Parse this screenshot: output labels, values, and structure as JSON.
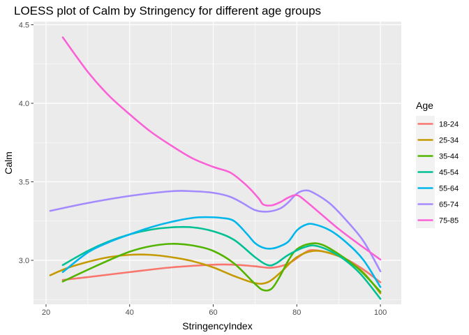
{
  "chart_data": {
    "type": "line",
    "title": "LOESS plot of Calm by Stringency for different age groups",
    "xlabel": "StringencyIndex",
    "ylabel": "Calm",
    "xlim": [
      17,
      105
    ],
    "ylim": [
      2.72,
      4.52
    ],
    "x_ticks": [
      20,
      40,
      60,
      80,
      100
    ],
    "x_tick_labels": [
      "20",
      "40",
      "60",
      "80",
      "100"
    ],
    "y_ticks": [
      3.0,
      3.5,
      4.0,
      4.5
    ],
    "y_tick_labels": [
      "3.0",
      "3.5",
      "4.0",
      "4.5"
    ],
    "grid": true,
    "panel_background": "#EBEBEB",
    "legend": {
      "title": "Age",
      "placement": "right"
    },
    "series": [
      {
        "name": "18-24",
        "color": "#F8766D",
        "x": [
          24,
          30,
          40,
          50,
          60,
          65,
          70,
          74,
          78,
          82,
          84,
          88,
          92,
          96,
          100
        ],
        "y": [
          2.875,
          2.893,
          2.925,
          2.955,
          2.972,
          2.972,
          2.962,
          2.953,
          2.98,
          3.05,
          3.065,
          3.045,
          3.005,
          2.94,
          2.86
        ]
      },
      {
        "name": "25-34",
        "color": "#C49A00",
        "x": [
          21,
          25,
          30,
          35,
          40,
          45,
          50,
          55,
          60,
          65,
          70,
          73,
          76,
          80,
          84,
          88,
          92,
          96,
          100
        ],
        "y": [
          2.905,
          2.95,
          2.99,
          3.02,
          3.035,
          3.035,
          3.02,
          2.995,
          2.955,
          2.9,
          2.855,
          2.86,
          2.92,
          3.02,
          3.06,
          3.045,
          3.0,
          2.92,
          2.79
        ]
      },
      {
        "name": "35-44",
        "color": "#53B400",
        "x": [
          24,
          30,
          35,
          40,
          45,
          50,
          55,
          60,
          65,
          70,
          72,
          74,
          76,
          78,
          80,
          83,
          86,
          90,
          95,
          100
        ],
        "y": [
          2.865,
          2.94,
          3.0,
          3.055,
          3.09,
          3.105,
          3.095,
          3.06,
          2.98,
          2.85,
          2.81,
          2.82,
          2.9,
          3.0,
          3.07,
          3.105,
          3.1,
          3.04,
          2.94,
          2.8
        ]
      },
      {
        "name": "45-54",
        "color": "#00C094",
        "x": [
          24,
          30,
          35,
          40,
          45,
          50,
          55,
          60,
          65,
          70,
          73,
          75,
          78,
          82,
          85,
          90,
          95,
          100
        ],
        "y": [
          2.97,
          3.06,
          3.12,
          3.165,
          3.195,
          3.21,
          3.21,
          3.185,
          3.13,
          3.02,
          2.97,
          2.98,
          3.035,
          3.085,
          3.09,
          3.03,
          2.92,
          2.755
        ]
      },
      {
        "name": "55-64",
        "color": "#00B6EB",
        "x": [
          24,
          30,
          35,
          40,
          45,
          50,
          55,
          58,
          62,
          65,
          68,
          70,
          72,
          74,
          76,
          78,
          80,
          82,
          84,
          88,
          92,
          96,
          100
        ],
        "y": [
          2.925,
          3.05,
          3.115,
          3.165,
          3.21,
          3.245,
          3.27,
          3.275,
          3.27,
          3.25,
          3.17,
          3.11,
          3.08,
          3.075,
          3.09,
          3.12,
          3.19,
          3.225,
          3.23,
          3.19,
          3.11,
          3.0,
          2.83
        ]
      },
      {
        "name": "65-74",
        "color": "#A58AFF",
        "x": [
          21,
          30,
          40,
          50,
          55,
          60,
          64,
          67,
          70,
          73,
          76,
          78,
          80,
          82,
          84,
          88,
          92,
          96,
          100
        ],
        "y": [
          3.315,
          3.365,
          3.41,
          3.44,
          3.44,
          3.43,
          3.405,
          3.365,
          3.32,
          3.31,
          3.33,
          3.37,
          3.425,
          3.445,
          3.43,
          3.36,
          3.25,
          3.12,
          2.93
        ]
      },
      {
        "name": "75-85",
        "color": "#FB61D7",
        "x": [
          24,
          30,
          35,
          40,
          45,
          50,
          55,
          60,
          64,
          67,
          69,
          71,
          72,
          74,
          76,
          78,
          80,
          82,
          86,
          90,
          95,
          100
        ],
        "y": [
          4.42,
          4.2,
          4.05,
          3.93,
          3.82,
          3.73,
          3.65,
          3.595,
          3.56,
          3.5,
          3.45,
          3.39,
          3.355,
          3.35,
          3.37,
          3.4,
          3.415,
          3.38,
          3.29,
          3.2,
          3.1,
          3.005
        ]
      }
    ]
  }
}
